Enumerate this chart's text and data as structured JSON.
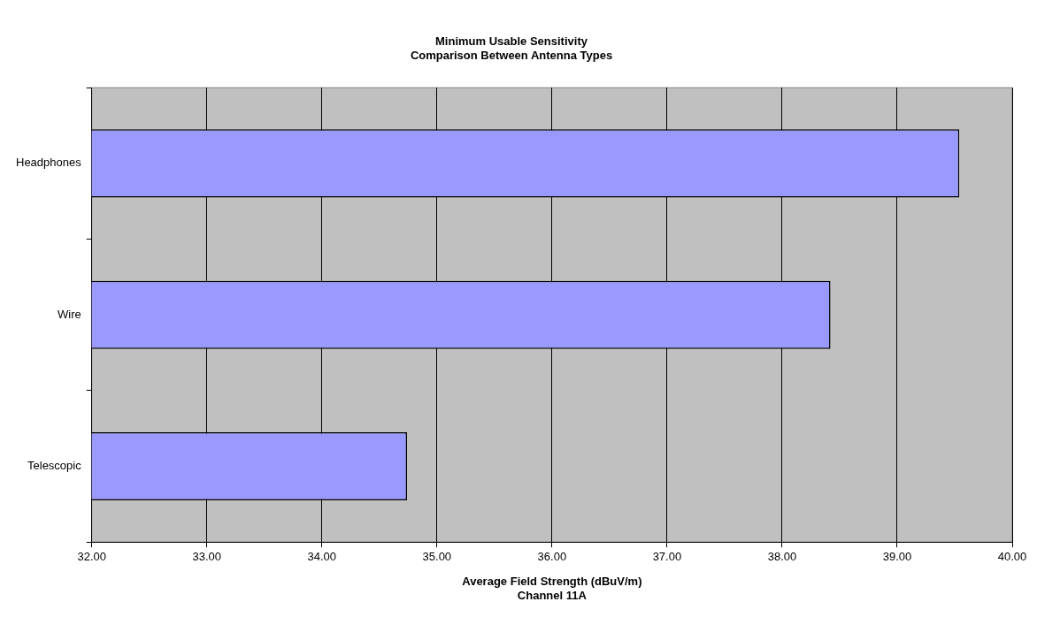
{
  "chart_data": {
    "type": "bar",
    "orientation": "horizontal",
    "title": "Minimum Usable Sensitivity\nComparison Between Antenna Types",
    "xlabel": "Average Field Strength (dBuV/m)\nChannel 11A",
    "categories": [
      "Headphones",
      "Wire",
      "Telescopic"
    ],
    "values": [
      39.54,
      38.42,
      34.74
    ],
    "color": "#9999ff",
    "xlim": [
      32,
      40
    ],
    "xticks": [
      {
        "value": 32,
        "label": "32.00"
      },
      {
        "value": 33,
        "label": "33.00"
      },
      {
        "value": 34,
        "label": "34.00"
      },
      {
        "value": 35,
        "label": "35.00"
      },
      {
        "value": 36,
        "label": "36.00"
      },
      {
        "value": 37,
        "label": "37.00"
      },
      {
        "value": 38,
        "label": "38.00"
      },
      {
        "value": 39,
        "label": "39.00"
      },
      {
        "value": 40,
        "label": "40.00"
      }
    ],
    "grid": "x",
    "legend": false
  }
}
